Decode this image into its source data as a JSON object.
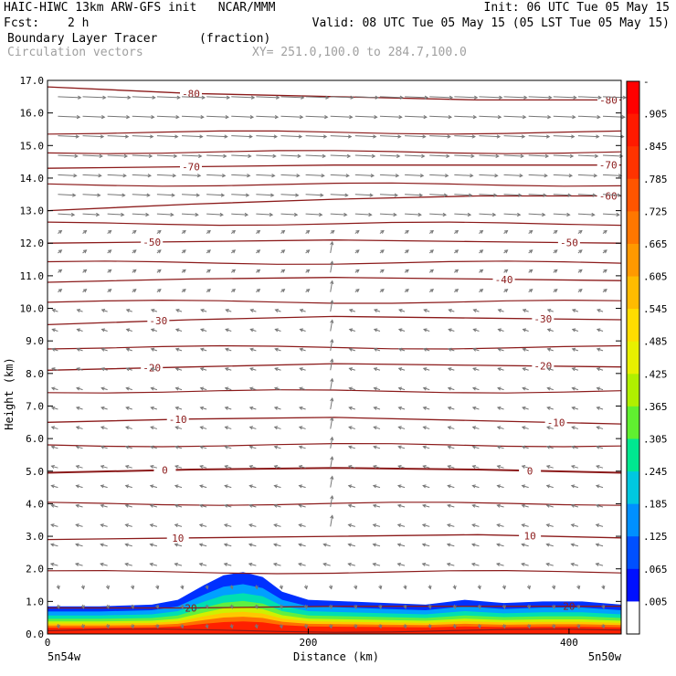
{
  "header": {
    "title_left": "HAIC-HIWC 13km ARW-GFS init   NCAR/MMM",
    "init": "Init: 06 UTC Tue 05 May 15",
    "fcst_label": "Fcst:",
    "fcst_value": "2 h",
    "valid": "Valid: 08 UTC Tue 05 May 15 (05 LST Tue 05 May 15)",
    "field_name": "Boundary Layer Tracer",
    "field_units": "(fraction)",
    "vector_label": "Circulation vectors",
    "xy_range": "XY= 251.0,100.0 to 284.7,100.0"
  },
  "chart_data": {
    "type": "heatmap",
    "title": "Boundary Layer Tracer",
    "units": "(fraction)",
    "ylabel": "Height (km)",
    "xlabel": "Distance (km)",
    "ylim": [
      0.0,
      17.0
    ],
    "xlim": [
      0,
      440
    ],
    "y_ticks": [
      "0.0",
      "1.0",
      "2.0",
      "3.0",
      "4.0",
      "5.0",
      "6.0",
      "7.0",
      "8.0",
      "9.0",
      "10.0",
      "11.0",
      "12.0",
      "13.0",
      "14.0",
      "15.0",
      "16.0",
      "17.0"
    ],
    "x_ticks": [
      "0",
      "200",
      "400"
    ],
    "x_endpoints": {
      "left": "5n54w",
      "right": "5n50w"
    },
    "colorbar": {
      "labels": [
        "-",
        ".905",
        ".845",
        ".785",
        ".725",
        ".665",
        ".605",
        ".545",
        ".485",
        ".425",
        ".365",
        ".305",
        ".245",
        ".185",
        ".125",
        ".065",
        ".005"
      ],
      "colors": [
        "#ffffff",
        "#0000ff",
        "#0038ff",
        "#0070ff",
        "#00a8ff",
        "#00d8d0",
        "#00e890",
        "#30f040",
        "#70f010",
        "#b0f000",
        "#e8f000",
        "#ffd800",
        "#ffa800",
        "#ff7800",
        "#ff4800",
        "#ff2000",
        "#ff0000"
      ]
    },
    "tracer_profile": {
      "x_km": [
        0,
        40,
        80,
        100,
        120,
        135,
        150,
        165,
        180,
        200,
        230,
        260,
        290,
        320,
        350,
        380,
        410,
        440
      ],
      "top_km": [
        0.85,
        0.85,
        0.9,
        1.05,
        1.5,
        1.8,
        1.9,
        1.75,
        1.3,
        1.05,
        1.0,
        0.95,
        0.9,
        1.05,
        0.95,
        1.0,
        1.0,
        0.9
      ]
    },
    "temperature_contours": [
      {
        "label": "20",
        "y": [
          0.8,
          0.8,
          0.85,
          0.85,
          0.85
        ],
        "label_x": [
          110,
          400
        ]
      },
      {
        "label": "10",
        "y": [
          2.9,
          2.95,
          3.0,
          3.05,
          2.95
        ],
        "label_x": [
          100,
          370
        ]
      },
      {
        "label": "0",
        "y": [
          4.95,
          5.05,
          5.1,
          5.05,
          4.95
        ],
        "label_x": [
          90,
          370
        ]
      },
      {
        "label": "-10",
        "y": [
          6.5,
          6.6,
          6.65,
          6.55,
          6.45
        ],
        "label_x": [
          100,
          390
        ]
      },
      {
        "label": "-20",
        "y": [
          8.1,
          8.2,
          8.3,
          8.25,
          8.2
        ],
        "label_x": [
          80,
          380
        ]
      },
      {
        "label": "-30",
        "y": [
          9.5,
          9.65,
          9.75,
          9.7,
          9.65
        ],
        "label_x": [
          85,
          380
        ]
      },
      {
        "label": "-40",
        "y": [
          10.8,
          10.9,
          10.95,
          10.9,
          10.85
        ],
        "label_x": [
          350,
          350
        ]
      },
      {
        "label": "-50",
        "y": [
          12.0,
          12.05,
          12.1,
          12.05,
          12.0
        ],
        "label_x": [
          80,
          400
        ]
      },
      {
        "label": "-60",
        "y": [
          13.0,
          13.2,
          13.35,
          13.45,
          13.45
        ],
        "label_x": [
          430,
          430
        ]
      },
      {
        "label": "-70",
        "y": [
          14.3,
          14.35,
          14.4,
          14.4,
          14.4
        ],
        "label_x": [
          110,
          430
        ]
      },
      {
        "label": "-80",
        "y": [
          16.8,
          16.6,
          16.5,
          16.4,
          16.4
        ],
        "label_x": [
          110,
          440
        ]
      }
    ],
    "extra_contours_y": [
      0.1,
      1.9,
      4.0,
      5.8,
      7.45,
      8.8,
      10.2,
      11.4,
      12.6,
      13.8,
      14.8,
      15.4
    ],
    "colors": {
      "contour": "#8b1a1a",
      "vector": "#777777",
      "axis": "#000000"
    }
  }
}
